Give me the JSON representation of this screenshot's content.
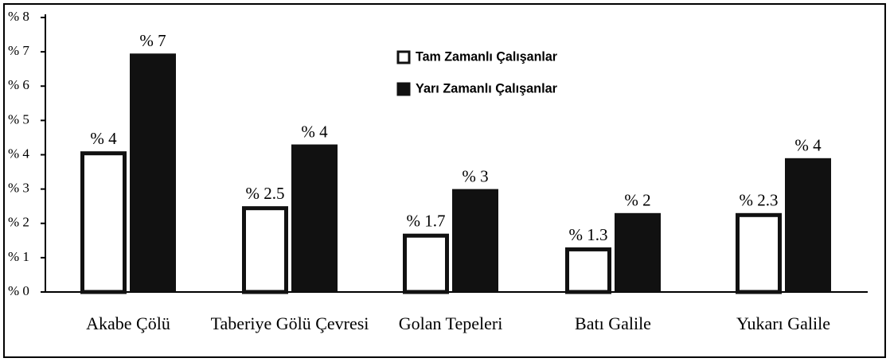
{
  "chart_data": {
    "type": "bar",
    "categories": [
      "Akabe Çölü",
      "Taberiye Gölü Çevresi",
      "Golan Tepeleri",
      "Batı Galile",
      "Yukarı Galile"
    ],
    "series": [
      {
        "name": "Tam Zamanlı Çalışanlar",
        "color": "#ffffff",
        "values": [
          4.1,
          2.5,
          1.7,
          1.3,
          2.3
        ],
        "value_labels": [
          "% 4",
          "% 2.5",
          "% 1.7",
          "% 1.3",
          "% 2.3"
        ]
      },
      {
        "name": "Yarı Zamanlı Çalışanlar",
        "color": "#111111",
        "values": [
          6.95,
          4.3,
          3.0,
          2.3,
          3.9
        ],
        "value_labels": [
          "% 7",
          "% 4",
          "% 3",
          "% 2",
          "% 4"
        ]
      }
    ],
    "ylim": [
      0,
      8
    ],
    "yticks": [
      {
        "value": 0,
        "label": "% 0"
      },
      {
        "value": 1,
        "label": "% 1"
      },
      {
        "value": 2,
        "label": "% 2"
      },
      {
        "value": 3,
        "label": "% 3"
      },
      {
        "value": 4,
        "label": "% 4"
      },
      {
        "value": 5,
        "label": "% 5"
      },
      {
        "value": 6,
        "label": "% 6"
      },
      {
        "value": 7,
        "label": "% 7"
      },
      {
        "value": 8,
        "label": "% 8"
      }
    ]
  }
}
